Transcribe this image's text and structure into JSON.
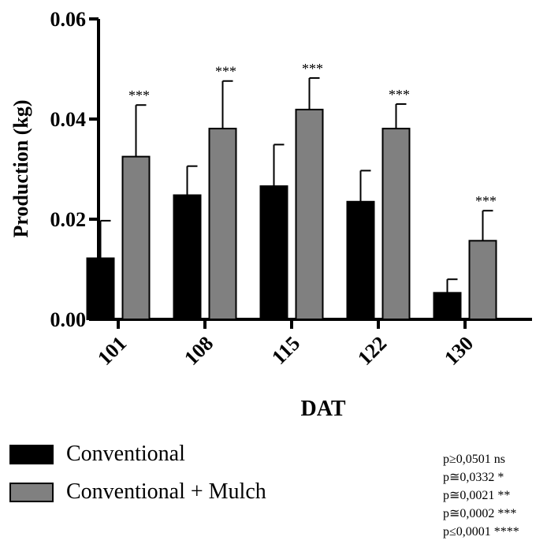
{
  "chart_data": {
    "type": "bar",
    "title": "",
    "xlabel": "DAT",
    "ylabel": "Production (kg)",
    "ylim": [
      0,
      0.06
    ],
    "y_ticks": [
      "0.00",
      "0.02",
      "0.04",
      "0.06"
    ],
    "categories": [
      "101",
      "108",
      "115",
      "122",
      "130"
    ],
    "series": [
      {
        "name": "Conventional",
        "color": "#000000",
        "values": [
          0.0122,
          0.0248,
          0.0266,
          0.0235,
          0.0053
        ],
        "error": [
          0.0075,
          0.0058,
          0.0083,
          0.0062,
          0.0027
        ]
      },
      {
        "name": "Conventional + Mulch",
        "color": "#808080",
        "values": [
          0.0325,
          0.0381,
          0.0419,
          0.0381,
          0.0157
        ],
        "error": [
          0.0103,
          0.0095,
          0.0063,
          0.0049,
          0.006
        ],
        "annotations": [
          "***",
          "***",
          "***",
          "***",
          "***"
        ]
      }
    ],
    "legend": {
      "position": "bottom-left",
      "items": [
        {
          "label": "Conventional",
          "color": "#000000"
        },
        {
          "label": "Conventional + Mulch",
          "color": "#808080"
        }
      ]
    },
    "significance_key": [
      "p≥0,0501 ns",
      "p≅0,0332 *",
      "p≅0,0021 **",
      "p≅0,0002 ***",
      "p≤0,0001 ****"
    ]
  }
}
